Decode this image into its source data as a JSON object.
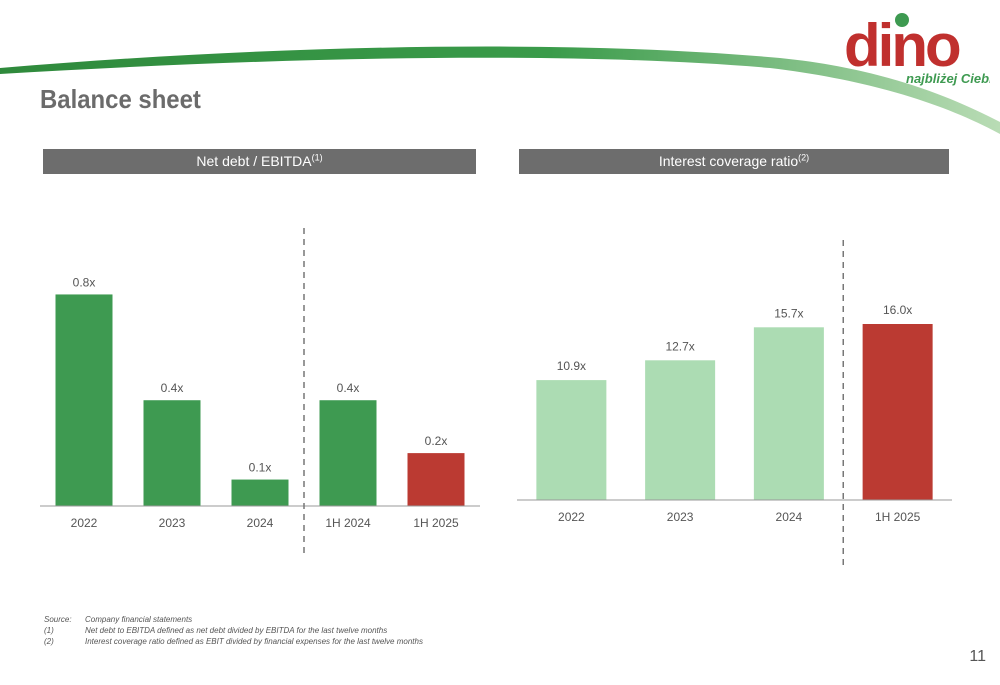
{
  "header": {
    "title": "Balance sheet",
    "logo_text": "dino",
    "logo_tagline": "najbliżej Ciebie"
  },
  "colors": {
    "green": "#3e9a51",
    "light_green": "#acdcb3",
    "red": "#bb3a32",
    "header_bg": "#6d6d6d",
    "axis": "#999999"
  },
  "panels": {
    "left": {
      "title": "Net debt / EBITDA",
      "sup": "(1)"
    },
    "right": {
      "title": "Interest coverage ratio",
      "sup": "(2)"
    }
  },
  "chart_data": [
    {
      "type": "bar",
      "title": "Net debt / EBITDA(1)",
      "categories": [
        "2022",
        "2023",
        "2024",
        "1H 2024",
        "1H 2025"
      ],
      "values": [
        0.8,
        0.4,
        0.1,
        0.4,
        0.2
      ],
      "labels": [
        "0.8x",
        "0.4x",
        "0.1x",
        "0.4x",
        "0.2x"
      ],
      "bar_colors": [
        "green",
        "green",
        "green",
        "green",
        "red"
      ],
      "divider_after_index": 2,
      "ylim": [
        0,
        0.9
      ],
      "grid": false,
      "xlabel": "",
      "ylabel": ""
    },
    {
      "type": "bar",
      "title": "Interest coverage ratio(2)",
      "categories": [
        "2022",
        "2023",
        "2024",
        "1H 2025"
      ],
      "values": [
        10.9,
        12.7,
        15.7,
        16.0
      ],
      "labels": [
        "10.9x",
        "12.7x",
        "15.7x",
        "16.0x"
      ],
      "bar_colors": [
        "light_green",
        "light_green",
        "light_green",
        "red"
      ],
      "divider_after_index": 2,
      "ylim": [
        0,
        20
      ],
      "grid": false,
      "xlabel": "",
      "ylabel": ""
    }
  ],
  "footnotes": [
    {
      "key": "Source:",
      "text": "Company financial statements"
    },
    {
      "key": "(1)",
      "text": "Net debt to EBITDA defined as net debt divided by EBITDA for the last twelve months"
    },
    {
      "key": "(2)",
      "text": "Interest coverage ratio defined as EBIT divided by financial expenses for the last twelve months"
    }
  ],
  "page_number": "11"
}
